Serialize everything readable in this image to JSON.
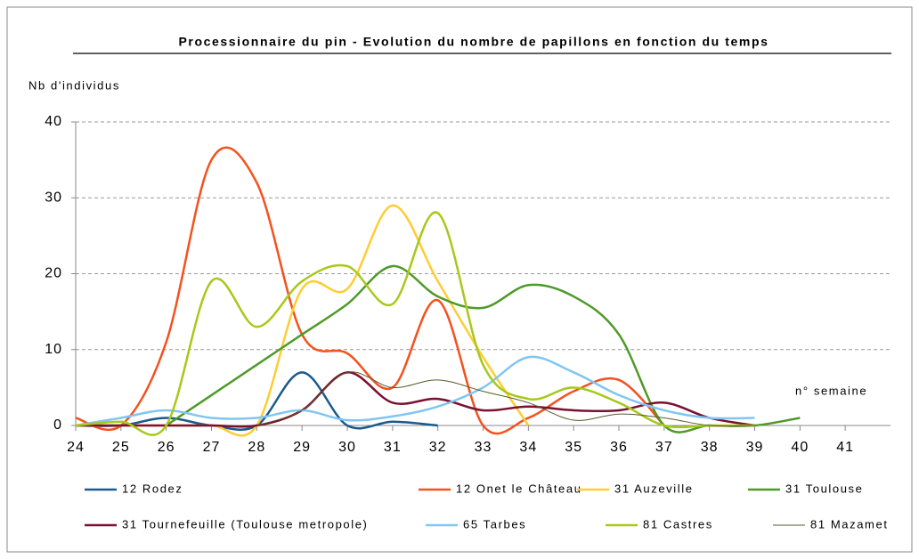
{
  "chart_data": {
    "type": "line",
    "title": "Processionnaire du pin - Evolution du nombre de papillons en fonction du temps",
    "y_label": "Nb d'individus",
    "x_label": "n° semaine",
    "x": [
      24,
      25,
      26,
      27,
      28,
      29,
      30,
      31,
      32,
      33,
      34,
      35,
      36,
      37,
      38,
      39,
      40,
      41
    ],
    "xlim": [
      24,
      42
    ],
    "xticks": [
      24,
      25,
      26,
      27,
      28,
      29,
      30,
      31,
      32,
      33,
      34,
      35,
      36,
      37,
      38,
      39,
      40,
      41
    ],
    "ylim": [
      0,
      40
    ],
    "yticks": [
      0,
      10,
      20,
      30,
      40
    ],
    "grid": true,
    "legend": "bottom",
    "series": [
      {
        "name": "12 Rodez",
        "color": "#1a5a8e",
        "values": [
          0,
          0,
          1,
          0,
          0,
          7,
          0,
          0.5,
          0,
          null,
          null,
          null,
          null,
          null,
          null,
          null,
          null,
          null
        ]
      },
      {
        "name": "12 Onet le Château",
        "color": "#f4511e",
        "values": [
          1,
          0,
          11,
          35,
          32,
          12,
          9.5,
          5,
          16.5,
          0,
          1,
          4.5,
          6,
          0,
          null,
          null,
          null,
          null
        ]
      },
      {
        "name": "31 Auzeville",
        "color": "#ffcc33",
        "values": [
          0,
          0,
          0,
          0,
          0,
          18,
          18,
          29,
          19,
          9,
          0,
          null,
          null,
          null,
          null,
          null,
          null,
          null
        ]
      },
      {
        "name": "31 Toulouse",
        "color": "#4e9a28",
        "values": [
          null,
          null,
          0,
          4,
          8,
          12,
          16,
          21,
          17,
          15.5,
          18.5,
          17,
          12,
          0,
          0,
          0,
          1,
          null
        ]
      },
      {
        "name": "31 Tournefeuille (Toulouse metropole)",
        "color": "#7b1030",
        "values": [
          0,
          0,
          0,
          0,
          0,
          2,
          7,
          3,
          3.5,
          2,
          2.5,
          2,
          2,
          3,
          1,
          0,
          null,
          null
        ]
      },
      {
        "name": "65 Tarbes",
        "color": "#80c6f0",
        "values": [
          0,
          1,
          2,
          1,
          1,
          2,
          0.7,
          1.2,
          2.5,
          5,
          9,
          7,
          4,
          2,
          1,
          1,
          null,
          null
        ]
      },
      {
        "name": "81 Castres",
        "color": "#a8c81a",
        "values": [
          0,
          0.5,
          0,
          19,
          13,
          19,
          21,
          16,
          28,
          8,
          3.5,
          5,
          3,
          0,
          0,
          0,
          null,
          null
        ]
      },
      {
        "name": "81 Mazamet",
        "color": "#5a5a2a",
        "values": [
          null,
          null,
          null,
          null,
          0,
          2,
          7,
          5,
          6,
          4.5,
          3,
          0.7,
          1.5,
          1,
          0,
          0,
          null,
          null
        ]
      }
    ]
  }
}
